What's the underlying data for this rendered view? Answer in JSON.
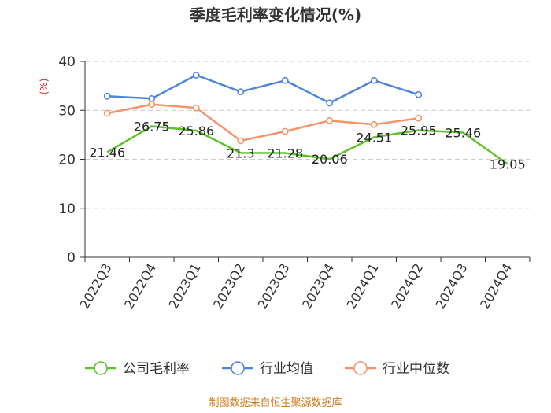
{
  "chart_data": {
    "type": "line",
    "title": "季度毛利率变化情况(%)",
    "ylabel": "(%)",
    "ylim": [
      0,
      40
    ],
    "yticks": [
      0,
      10,
      20,
      30,
      40
    ],
    "grid": true,
    "legend_position": "bottom",
    "categories": [
      "2022Q3",
      "2022Q4",
      "2023Q1",
      "2023Q2",
      "2023Q3",
      "2023Q4",
      "2024Q1",
      "2024Q2",
      "2024Q3",
      "2024Q4"
    ],
    "series": [
      {
        "name": "公司毛利率",
        "color": "#5cc32b",
        "values": [
          21.46,
          26.75,
          25.86,
          21.3,
          21.28,
          20.06,
          24.51,
          25.95,
          25.46,
          19.05
        ],
        "labels": [
          "21.46",
          "26.75",
          "25.86",
          "21.3",
          "21.28",
          "20.06",
          "24.51",
          "25.95",
          "25.46",
          "19.05"
        ],
        "markers": [
          false,
          false,
          false,
          false,
          false,
          false,
          false,
          false,
          false,
          false
        ]
      },
      {
        "name": "行业均值",
        "color": "#4f86dc",
        "values": [
          32.9,
          32.4,
          37.2,
          33.8,
          36.1,
          31.5,
          36.1,
          33.2,
          null,
          null
        ],
        "markers": [
          true,
          true,
          true,
          true,
          true,
          true,
          true,
          true,
          false,
          false
        ]
      },
      {
        "name": "行业中位数",
        "color": "#f4946a",
        "values": [
          29.4,
          31.2,
          30.5,
          23.8,
          25.7,
          27.9,
          27.1,
          28.4,
          null,
          null
        ],
        "markers": [
          true,
          true,
          true,
          true,
          true,
          true,
          true,
          true,
          false,
          false
        ]
      }
    ],
    "source": "制图数据来自恒生聚源数据库"
  }
}
